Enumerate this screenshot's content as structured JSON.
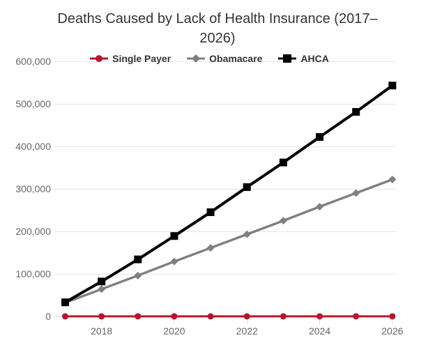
{
  "colors": {
    "background": "#ffffff",
    "title_text": "#333333",
    "label_text": "#666666",
    "gridline": "#e6e6e6",
    "axis_line_and_ticks": "#ccd6eb",
    "single_payer": "#b8142a",
    "obamacare": "#7f7f7f",
    "ahca": "#000000"
  },
  "chart_data": {
    "type": "line",
    "title": "Deaths Caused by Lack of Health Insurance (2017–2026)",
    "x": [
      2017,
      2018,
      2019,
      2020,
      2021,
      2022,
      2023,
      2024,
      2025,
      2026
    ],
    "series": [
      {
        "name": "Single Payer",
        "color": "#b8142a",
        "marker": "circle",
        "values": [
          0,
          0,
          0,
          0,
          0,
          0,
          0,
          0,
          0,
          0
        ]
      },
      {
        "name": "Obamacare",
        "color": "#7f7f7f",
        "marker": "diamond",
        "values": [
          32000,
          64000,
          96000,
          129000,
          161000,
          193000,
          225000,
          258000,
          290000,
          322000
        ]
      },
      {
        "name": "AHCA",
        "color": "#000000",
        "marker": "square",
        "values": [
          33000,
          82000,
          134000,
          189000,
          245000,
          304000,
          362000,
          422000,
          481000,
          543000
        ]
      }
    ],
    "xlabel": "",
    "ylabel": "",
    "ylim": [
      0,
      600000
    ],
    "yticks": [
      {
        "value": 0,
        "label": "0"
      },
      {
        "value": 100000,
        "label": "100,000"
      },
      {
        "value": 200000,
        "label": "200,000"
      },
      {
        "value": 300000,
        "label": "300,000"
      },
      {
        "value": 400000,
        "label": "400,000"
      },
      {
        "value": 500000,
        "label": "500,000"
      },
      {
        "value": 600000,
        "label": "600,000"
      }
    ],
    "xticks": [
      {
        "value": 2018,
        "label": "2018"
      },
      {
        "value": 2020,
        "label": "2020"
      },
      {
        "value": 2022,
        "label": "2022"
      },
      {
        "value": 2024,
        "label": "2024"
      },
      {
        "value": 2026,
        "label": "2026"
      }
    ],
    "grid": "horizontal",
    "legend_position": "top"
  }
}
